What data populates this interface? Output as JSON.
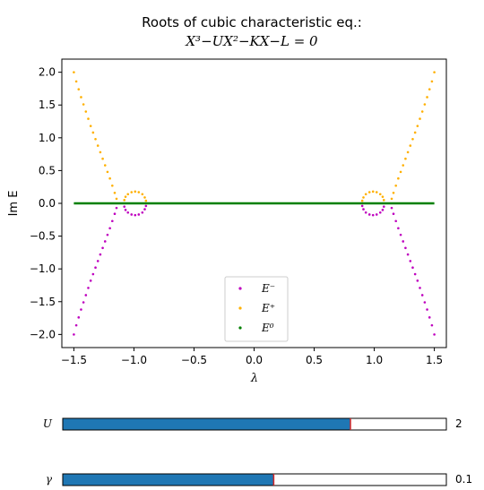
{
  "chart_data": {
    "type": "scatter",
    "title": "Roots of cubic characteristic eq.:",
    "subtitle": "X³−UX²−KX−L = 0",
    "xlabel": "λ",
    "ylabel": "Im E",
    "xlim": [
      -1.6,
      1.6
    ],
    "ylim": [
      -2.2,
      2.2
    ],
    "xticks": [
      -1.5,
      -1.0,
      -0.5,
      0.0,
      0.5,
      1.0,
      1.5
    ],
    "xtick_labels": [
      "−1.5",
      "−1.0",
      "−0.5",
      "0.0",
      "0.5",
      "1.0",
      "1.5"
    ],
    "yticks": [
      2.0,
      1.5,
      1.0,
      0.5,
      0.0,
      -0.5,
      -1.0,
      -1.5,
      -2.0
    ],
    "ytick_labels": [
      "2.0",
      "1.5",
      "1.0",
      "0.5",
      "0.0",
      "−0.5",
      "−1.0",
      "−1.5",
      "−2.0"
    ],
    "grid": false,
    "legend_position": "bottom-center",
    "series": [
      {
        "name": "E⁻",
        "color": "#bf00bf",
        "points": [
          [
            -1.5,
            -2.0
          ],
          [
            -1.48,
            -1.86
          ],
          [
            -1.46,
            -1.74
          ],
          [
            -1.44,
            -1.62
          ],
          [
            -1.42,
            -1.51
          ],
          [
            -1.4,
            -1.4
          ],
          [
            -1.38,
            -1.29
          ],
          [
            -1.36,
            -1.18
          ],
          [
            -1.34,
            -1.08
          ],
          [
            -1.32,
            -0.98
          ],
          [
            -1.3,
            -0.88
          ],
          [
            -1.28,
            -0.78
          ],
          [
            -1.26,
            -0.68
          ],
          [
            -1.24,
            -0.58
          ],
          [
            -1.22,
            -0.48
          ],
          [
            -1.2,
            -0.38
          ],
          [
            -1.18,
            -0.27
          ],
          [
            -1.16,
            -0.16
          ],
          [
            -1.145,
            -0.07
          ],
          [
            -1.08,
            -0.05
          ],
          [
            -1.07,
            -0.1
          ],
          [
            -1.05,
            -0.14
          ],
          [
            -1.02,
            -0.17
          ],
          [
            -0.99,
            -0.18
          ],
          [
            -0.96,
            -0.17
          ],
          [
            -0.93,
            -0.14
          ],
          [
            -0.91,
            -0.09
          ],
          [
            -0.9,
            -0.04
          ],
          [
            0.9,
            -0.04
          ],
          [
            0.91,
            -0.09
          ],
          [
            0.93,
            -0.14
          ],
          [
            0.96,
            -0.17
          ],
          [
            0.99,
            -0.18
          ],
          [
            1.02,
            -0.17
          ],
          [
            1.05,
            -0.14
          ],
          [
            1.07,
            -0.1
          ],
          [
            1.08,
            -0.05
          ],
          [
            1.145,
            -0.07
          ],
          [
            1.16,
            -0.16
          ],
          [
            1.18,
            -0.27
          ],
          [
            1.2,
            -0.38
          ],
          [
            1.22,
            -0.48
          ],
          [
            1.24,
            -0.58
          ],
          [
            1.26,
            -0.68
          ],
          [
            1.28,
            -0.78
          ],
          [
            1.3,
            -0.88
          ],
          [
            1.32,
            -0.98
          ],
          [
            1.34,
            -1.08
          ],
          [
            1.36,
            -1.18
          ],
          [
            1.38,
            -1.29
          ],
          [
            1.4,
            -1.4
          ],
          [
            1.42,
            -1.51
          ],
          [
            1.44,
            -1.62
          ],
          [
            1.46,
            -1.74
          ],
          [
            1.48,
            -1.86
          ],
          [
            1.5,
            -2.0
          ]
        ]
      },
      {
        "name": "E⁺",
        "color": "#ffb000",
        "points": [
          [
            -1.5,
            2.0
          ],
          [
            -1.48,
            1.86
          ],
          [
            -1.46,
            1.74
          ],
          [
            -1.44,
            1.62
          ],
          [
            -1.42,
            1.51
          ],
          [
            -1.4,
            1.4
          ],
          [
            -1.38,
            1.29
          ],
          [
            -1.36,
            1.18
          ],
          [
            -1.34,
            1.08
          ],
          [
            -1.32,
            0.98
          ],
          [
            -1.3,
            0.88
          ],
          [
            -1.28,
            0.78
          ],
          [
            -1.26,
            0.68
          ],
          [
            -1.24,
            0.58
          ],
          [
            -1.22,
            0.48
          ],
          [
            -1.2,
            0.38
          ],
          [
            -1.18,
            0.27
          ],
          [
            -1.16,
            0.16
          ],
          [
            -1.145,
            0.07
          ],
          [
            -1.08,
            0.05
          ],
          [
            -1.07,
            0.1
          ],
          [
            -1.05,
            0.14
          ],
          [
            -1.02,
            0.17
          ],
          [
            -0.99,
            0.18
          ],
          [
            -0.96,
            0.17
          ],
          [
            -0.93,
            0.14
          ],
          [
            -0.91,
            0.09
          ],
          [
            -0.9,
            0.04
          ],
          [
            0.9,
            0.04
          ],
          [
            0.91,
            0.09
          ],
          [
            0.93,
            0.14
          ],
          [
            0.96,
            0.17
          ],
          [
            0.99,
            0.18
          ],
          [
            1.02,
            0.17
          ],
          [
            1.05,
            0.14
          ],
          [
            1.07,
            0.1
          ],
          [
            1.08,
            0.05
          ],
          [
            1.145,
            0.07
          ],
          [
            1.16,
            0.16
          ],
          [
            1.18,
            0.27
          ],
          [
            1.2,
            0.38
          ],
          [
            1.22,
            0.48
          ],
          [
            1.24,
            0.58
          ],
          [
            1.26,
            0.68
          ],
          [
            1.28,
            0.78
          ],
          [
            1.3,
            0.88
          ],
          [
            1.32,
            0.98
          ],
          [
            1.34,
            1.08
          ],
          [
            1.36,
            1.18
          ],
          [
            1.38,
            1.29
          ],
          [
            1.4,
            1.4
          ],
          [
            1.42,
            1.51
          ],
          [
            1.44,
            1.62
          ],
          [
            1.46,
            1.74
          ],
          [
            1.48,
            1.86
          ],
          [
            1.5,
            2.0
          ]
        ]
      },
      {
        "name": "E⁰",
        "color": "#008000",
        "points": [
          [
            -1.5,
            0.0
          ],
          [
            1.5,
            0.0
          ]
        ]
      }
    ]
  },
  "sliders": [
    {
      "label": "U",
      "value_text": "2",
      "fraction": 0.75,
      "fill_color": "#1f77b4",
      "marker_color": "#d62728"
    },
    {
      "label": "γ",
      "value_text": "0.1",
      "fraction": 0.55,
      "fill_color": "#1f77b4",
      "marker_color": "#d62728"
    }
  ]
}
